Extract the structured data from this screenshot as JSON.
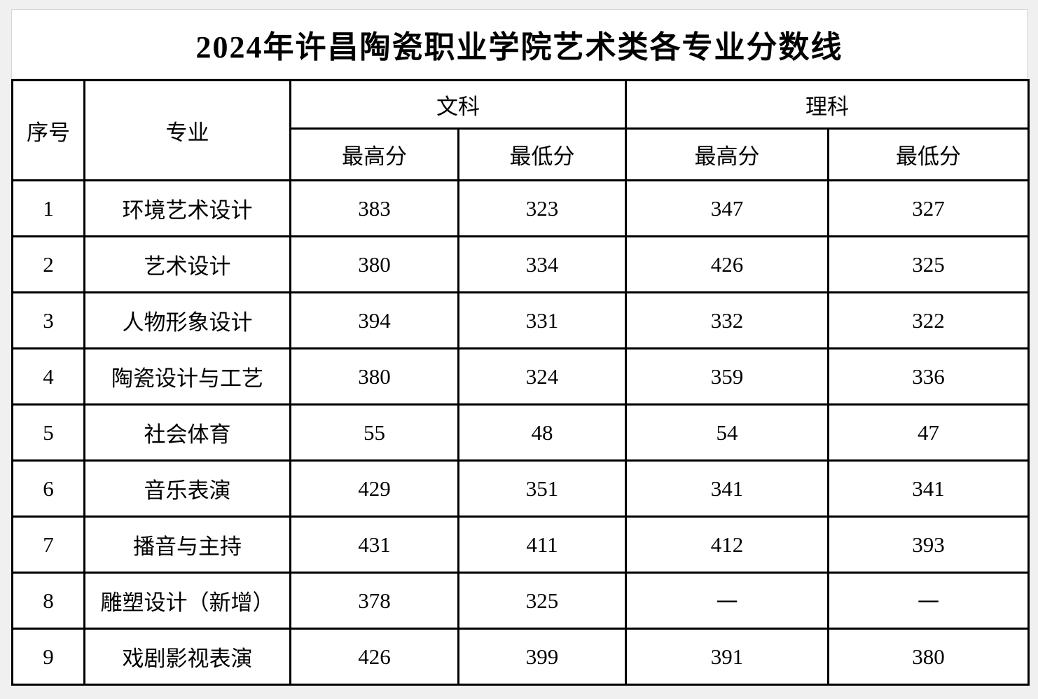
{
  "title": "2024年许昌陶瓷职业学院艺术类各专业分数线",
  "table": {
    "headers": {
      "col_index": "序号",
      "col_major": "专业",
      "group_liberal_arts": "文科",
      "group_science": "理科",
      "sub_max": "最高分",
      "sub_min": "最低分"
    },
    "rows": [
      {
        "no": "1",
        "major": "环境艺术设计",
        "wen_max": "383",
        "wen_min": "323",
        "li_max": "347",
        "li_min": "327"
      },
      {
        "no": "2",
        "major": "艺术设计",
        "wen_max": "380",
        "wen_min": "334",
        "li_max": "426",
        "li_min": "325"
      },
      {
        "no": "3",
        "major": "人物形象设计",
        "wen_max": "394",
        "wen_min": "331",
        "li_max": "332",
        "li_min": "322"
      },
      {
        "no": "4",
        "major": "陶瓷设计与工艺",
        "wen_max": "380",
        "wen_min": "324",
        "li_max": "359",
        "li_min": "336"
      },
      {
        "no": "5",
        "major": "社会体育",
        "wen_max": "55",
        "wen_min": "48",
        "li_max": "54",
        "li_min": "47"
      },
      {
        "no": "6",
        "major": "音乐表演",
        "wen_max": "429",
        "wen_min": "351",
        "li_max": "341",
        "li_min": "341"
      },
      {
        "no": "7",
        "major": "播音与主持",
        "wen_max": "431",
        "wen_min": "411",
        "li_max": "412",
        "li_min": "393"
      },
      {
        "no": "8",
        "major": "雕塑设计（新增）",
        "wen_max": "378",
        "wen_min": "325",
        "li_max": "一",
        "li_min": "一"
      },
      {
        "no": "9",
        "major": "戏剧影视表演",
        "wen_max": "426",
        "wen_min": "399",
        "li_max": "391",
        "li_min": "380"
      }
    ]
  },
  "chart_data": {
    "type": "table",
    "title": "2024年许昌陶瓷职业学院艺术类各专业分数线",
    "columns": [
      "序号",
      "专业",
      "文科最高分",
      "文科最低分",
      "理科最高分",
      "理科最低分"
    ],
    "rows": [
      [
        "1",
        "环境艺术设计",
        383,
        323,
        347,
        327
      ],
      [
        "2",
        "艺术设计",
        380,
        334,
        426,
        325
      ],
      [
        "3",
        "人物形象设计",
        394,
        331,
        332,
        322
      ],
      [
        "4",
        "陶瓷设计与工艺",
        380,
        324,
        359,
        336
      ],
      [
        "5",
        "社会体育",
        55,
        48,
        54,
        47
      ],
      [
        "6",
        "音乐表演",
        429,
        351,
        341,
        341
      ],
      [
        "7",
        "播音与主持",
        431,
        411,
        412,
        393
      ],
      [
        "8",
        "雕塑设计（新增）",
        378,
        325,
        null,
        null
      ],
      [
        "9",
        "戏剧影视表演",
        426,
        399,
        391,
        380
      ]
    ]
  },
  "colors": {
    "page_background": "#f0f0f0",
    "cell_background": "#ffffff",
    "table_border": "#000000",
    "title_border": "#d6d6d6",
    "text": "#000000"
  }
}
